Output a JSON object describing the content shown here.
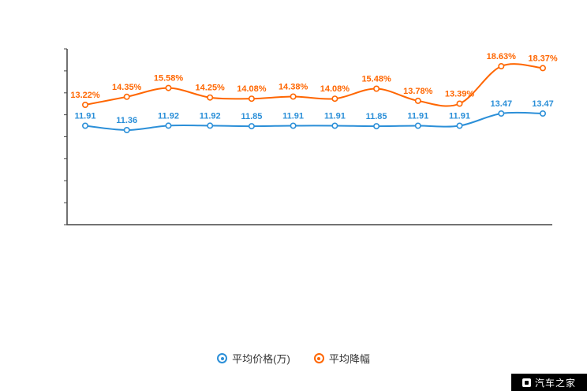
{
  "chart_data": {
    "type": "line",
    "title": "",
    "xlabel": "",
    "ylabel": "",
    "grid": false,
    "legend_position": "bottom",
    "x_point_count": 12,
    "series": [
      {
        "name": "平均价格(万)",
        "color": "#2b8fd8",
        "unit": "万",
        "values": [
          11.91,
          11.36,
          11.92,
          11.92,
          11.85,
          11.91,
          11.91,
          11.85,
          11.91,
          11.91,
          13.47,
          13.47
        ],
        "labels": [
          "11.91",
          "11.36",
          "11.92",
          "11.92",
          "11.85",
          "11.91",
          "11.91",
          "11.85",
          "11.91",
          "11.91",
          "13.47",
          "13.47"
        ]
      },
      {
        "name": "平均降幅",
        "color": "#ff6600",
        "unit": "%",
        "values": [
          13.22,
          14.35,
          15.58,
          14.25,
          14.08,
          14.38,
          14.08,
          15.48,
          13.78,
          13.39,
          18.63,
          18.37
        ],
        "labels": [
          "13.22%",
          "14.35%",
          "15.58%",
          "14.25%",
          "14.08%",
          "14.38%",
          "14.08%",
          "15.48%",
          "13.78%",
          "13.39%",
          "18.63%",
          "18.37%"
        ]
      }
    ]
  },
  "legend": {
    "item1": "平均价格(万)",
    "item2": "平均降幅"
  },
  "watermark": {
    "text": "汽车之家"
  },
  "colors": {
    "series_blue": "#2b8fd8",
    "series_orange": "#ff6600",
    "axis": "#444444",
    "background": "#ffffff",
    "watermark_bg": "#000000",
    "watermark_text": "#ffffff"
  }
}
